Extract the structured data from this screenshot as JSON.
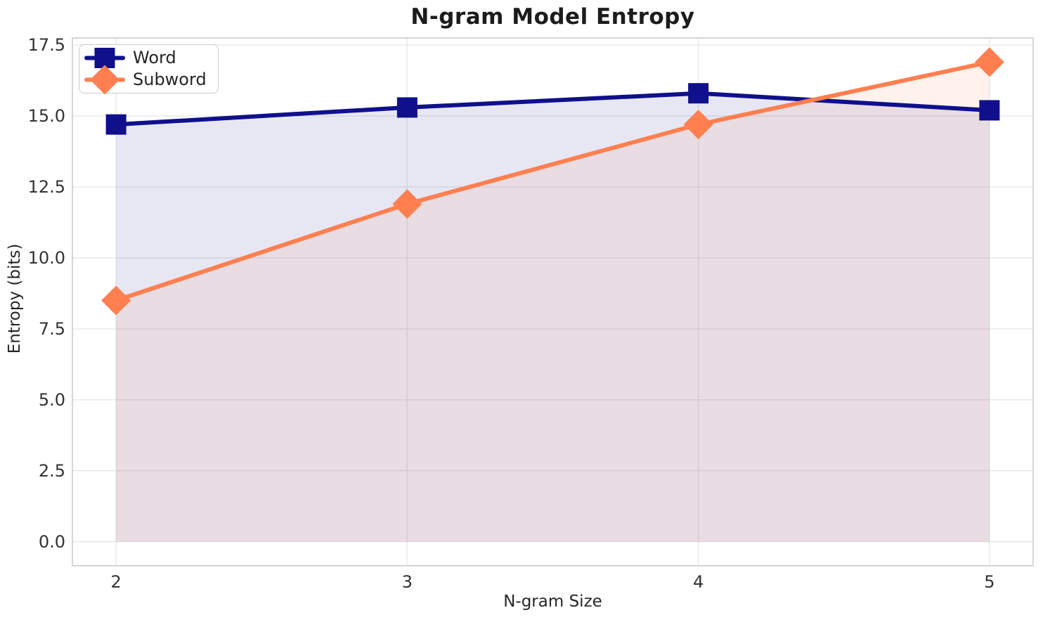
{
  "chart_data": {
    "type": "line",
    "title": "N-gram Model Entropy",
    "xlabel": "N-gram Size",
    "ylabel": "Entropy (bits)",
    "x": [
      2,
      3,
      4,
      5
    ],
    "series": [
      {
        "name": "Word",
        "values": [
          14.7,
          15.3,
          15.8,
          15.2
        ],
        "color": "#10108c",
        "marker": "square",
        "fill_to_zero": true,
        "fill_opacity": 0.1,
        "line_width": 6
      },
      {
        "name": "Subword",
        "values": [
          8.5,
          11.9,
          14.7,
          16.9
        ],
        "color": "#ff7f50",
        "marker": "diamond",
        "fill_to_zero": true,
        "fill_opacity": 0.1,
        "line_width": 6
      }
    ],
    "xlim": [
      1.85,
      5.15
    ],
    "ylim": [
      -0.85,
      17.75
    ],
    "xticks": {
      "values": [
        2,
        3,
        4,
        5
      ],
      "labels": [
        "2",
        "3",
        "4",
        "5"
      ]
    },
    "yticks": {
      "values": [
        0,
        2.5,
        5,
        7.5,
        10,
        12.5,
        15,
        17.5
      ],
      "labels": [
        "0.0",
        "2.5",
        "5.0",
        "7.5",
        "10.0",
        "12.5",
        "15.0",
        "17.5"
      ]
    },
    "grid": true,
    "legend_position": "upper left",
    "colors": {
      "grid": "#e8e8e8",
      "spine": "#cccccc",
      "tick_text": "#333333",
      "text": "#262626",
      "title": "#1c1c1c",
      "background": "#ffffff"
    }
  }
}
